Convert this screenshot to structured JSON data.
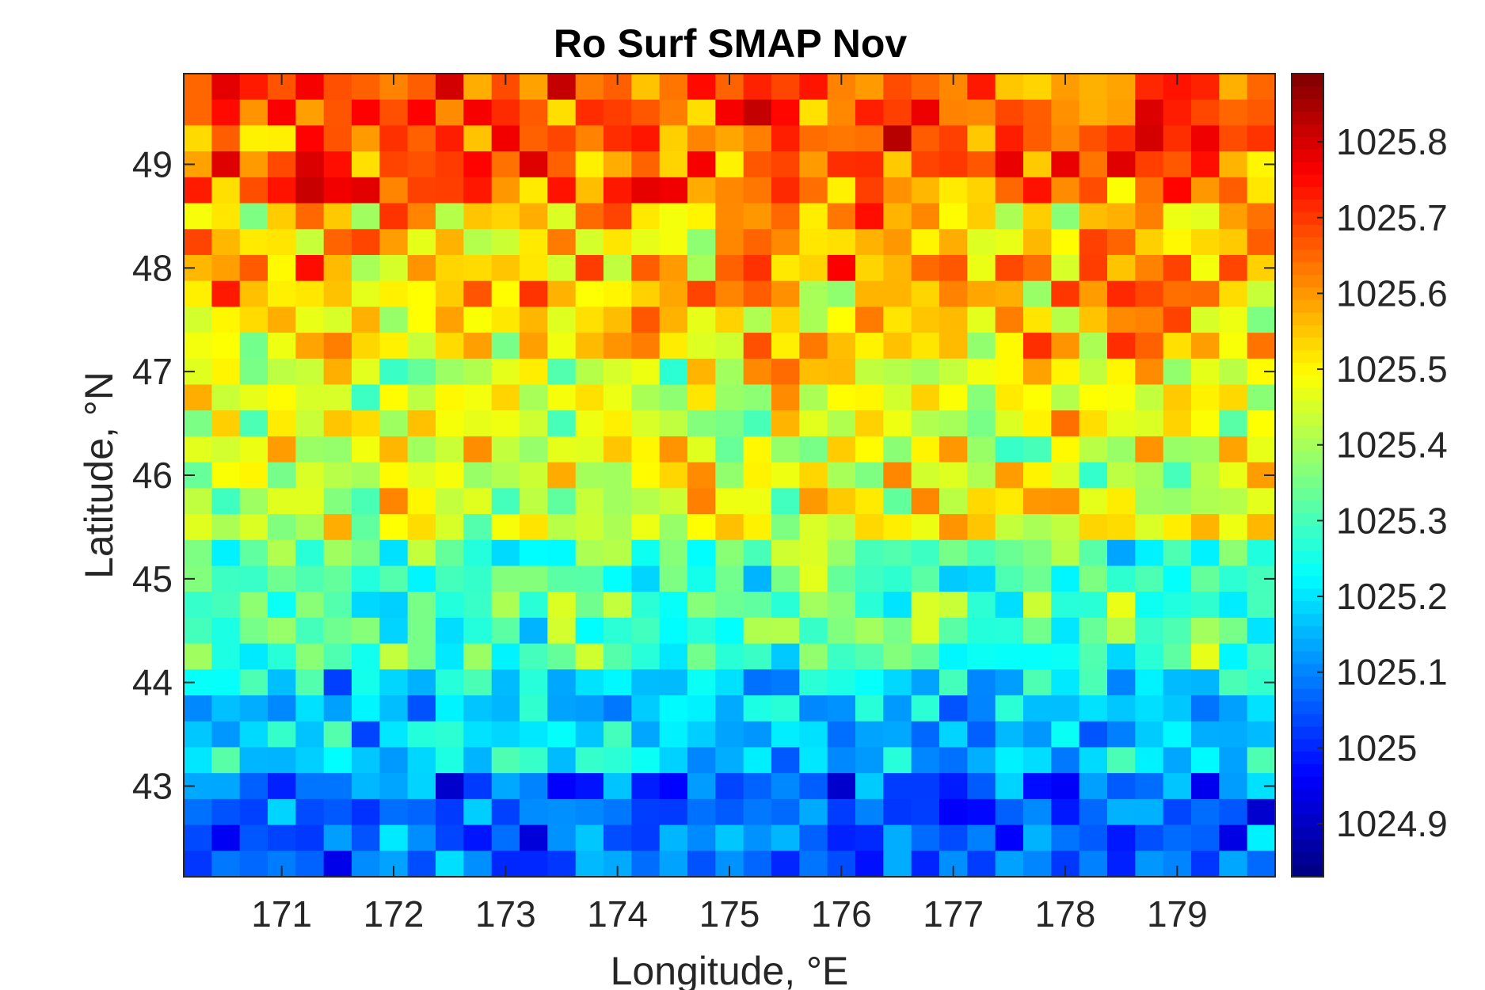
{
  "chart_data": {
    "type": "heatmap",
    "title": "Ro Surf SMAP Nov",
    "xlabel": "Longitude, °E",
    "ylabel": "Latitude, °N",
    "x_ticks": [
      "171",
      "172",
      "173",
      "174",
      "175",
      "176",
      "177",
      "178",
      "179"
    ],
    "x_tick_values": [
      171,
      172,
      173,
      174,
      175,
      176,
      177,
      178,
      179
    ],
    "y_ticks": [
      "49",
      "48",
      "47",
      "46",
      "45",
      "44",
      "43"
    ],
    "y_tick_values": [
      49,
      48,
      47,
      46,
      45,
      44,
      43
    ],
    "xlim": [
      170.125,
      179.875
    ],
    "ylim": [
      42.125,
      49.875
    ],
    "colorbar": {
      "colormap": "jet",
      "clim": [
        1024.83,
        1025.89
      ],
      "ticks": [
        "1025.8",
        "1025.7",
        "1025.6",
        "1025.5",
        "1025.4",
        "1025.3",
        "1025.2",
        "1025.1",
        "1025",
        "1024.9"
      ],
      "tick_values": [
        1025.8,
        1025.7,
        1025.6,
        1025.5,
        1025.4,
        1025.3,
        1025.2,
        1025.1,
        1025.0,
        1024.9
      ]
    },
    "grid": {
      "x_start": 170.125,
      "y_start": 42.125,
      "cell_size": 0.25,
      "columns": 39,
      "rows": 31,
      "value_bands": [
        {
          "rows_from_top": [
            0,
            4
          ],
          "mean": 1025.66,
          "spread": 0.2
        },
        {
          "rows_from_top": [
            5,
            10
          ],
          "mean": 1025.55,
          "spread": 0.22
        },
        {
          "rows_from_top": [
            11,
            17
          ],
          "mean": 1025.46,
          "spread": 0.2
        },
        {
          "rows_from_top": [
            18,
            22
          ],
          "mean": 1025.31,
          "spread": 0.18
        },
        {
          "rows_from_top": [
            23,
            26
          ],
          "mean": 1025.18,
          "spread": 0.17
        },
        {
          "rows_from_top": [
            27,
            30
          ],
          "mean": 1025.06,
          "spread": 0.16
        }
      ]
    }
  }
}
